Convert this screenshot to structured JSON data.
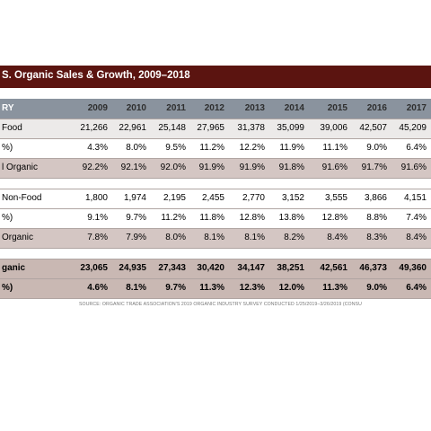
{
  "title": "S. Organic Sales & Growth, 2009–2018",
  "chart_data": {
    "type": "table",
    "columns": [
      "2009",
      "2010",
      "2011",
      "2012",
      "2013",
      "2014",
      "2015",
      "2016",
      "2017"
    ],
    "header_label": "RY",
    "rows": [
      {
        "label": "Food",
        "values": [
          "21,266",
          "22,961",
          "25,148",
          "27,965",
          "31,378",
          "35,099",
          "39,006",
          "42,507",
          "45,209"
        ]
      },
      {
        "label": "%)",
        "values": [
          "4.3%",
          "8.0%",
          "9.5%",
          "11.2%",
          "12.2%",
          "11.9%",
          "11.1%",
          "9.0%",
          "6.4%"
        ]
      },
      {
        "label": "l Organic",
        "values": [
          "92.2%",
          "92.1%",
          "92.0%",
          "91.9%",
          "91.9%",
          "91.8%",
          "91.6%",
          "91.7%",
          "91.6%"
        ]
      },
      {
        "label": "Non-Food",
        "values": [
          "1,800",
          "1,974",
          "2,195",
          "2,455",
          "2,770",
          "3,152",
          "3,555",
          "3,866",
          "4,151"
        ]
      },
      {
        "label": "%)",
        "values": [
          "9.1%",
          "9.7%",
          "11.2%",
          "11.8%",
          "12.8%",
          "13.8%",
          "12.8%",
          "8.8%",
          "7.4%"
        ]
      },
      {
        "label": "Organic",
        "values": [
          "7.8%",
          "7.9%",
          "8.0%",
          "8.1%",
          "8.1%",
          "8.2%",
          "8.4%",
          "8.3%",
          "8.4%"
        ]
      },
      {
        "label": "ganic",
        "values": [
          "23,065",
          "24,935",
          "27,343",
          "30,420",
          "34,147",
          "38,251",
          "42,561",
          "46,373",
          "49,360"
        ]
      },
      {
        "label": "%)",
        "values": [
          "4.6%",
          "8.1%",
          "9.7%",
          "11.3%",
          "12.3%",
          "12.0%",
          "11.3%",
          "9.0%",
          "6.4%"
        ]
      }
    ]
  },
  "source": "SOURCE: ORGANIC TRADE ASSOCIATION'S 2019 ORGANIC INDUSTRY SURVEY CONDUCTED 1/25/2019–3/26/2019 (CONSU",
  "colors": {
    "title_bar": "#5b1410",
    "header": "#8a939e",
    "row_gray": "#eceae9",
    "row_rose": "#d4c6c3",
    "row_total": "#c9b8b3"
  }
}
